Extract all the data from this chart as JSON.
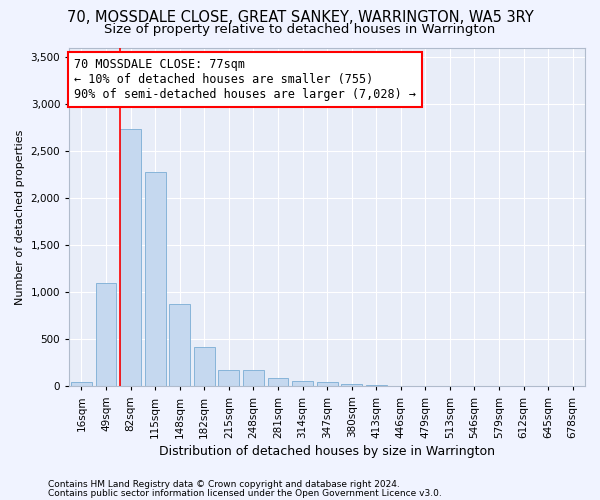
{
  "title": "70, MOSSDALE CLOSE, GREAT SANKEY, WARRINGTON, WA5 3RY",
  "subtitle": "Size of property relative to detached houses in Warrington",
  "xlabel": "Distribution of detached houses by size in Warrington",
  "ylabel": "Number of detached properties",
  "categories": [
    "16sqm",
    "49sqm",
    "82sqm",
    "115sqm",
    "148sqm",
    "182sqm",
    "215sqm",
    "248sqm",
    "281sqm",
    "314sqm",
    "347sqm",
    "380sqm",
    "413sqm",
    "446sqm",
    "479sqm",
    "513sqm",
    "546sqm",
    "579sqm",
    "612sqm",
    "645sqm",
    "678sqm"
  ],
  "values": [
    50,
    1100,
    2730,
    2280,
    880,
    420,
    170,
    170,
    90,
    55,
    50,
    30,
    20,
    5,
    2,
    1,
    0,
    0,
    0,
    0,
    0
  ],
  "bar_color": "#c5d8ef",
  "bar_edge_color": "#7aadd4",
  "annotation_line1": "70 MOSSDALE CLOSE: 77sqm",
  "annotation_line2": "← 10% of detached houses are smaller (755)",
  "annotation_line3": "90% of semi-detached houses are larger (7,028) →",
  "annotation_box_color": "white",
  "annotation_box_edge_color": "red",
  "red_line_x": 2,
  "ylim": [
    0,
    3600
  ],
  "yticks": [
    0,
    500,
    1000,
    1500,
    2000,
    2500,
    3000,
    3500
  ],
  "background_color": "#f0f3ff",
  "plot_background": "#e8edf8",
  "grid_color": "white",
  "footer_line1": "Contains HM Land Registry data © Crown copyright and database right 2024.",
  "footer_line2": "Contains public sector information licensed under the Open Government Licence v3.0.",
  "title_fontsize": 10.5,
  "subtitle_fontsize": 9.5,
  "xlabel_fontsize": 9,
  "ylabel_fontsize": 8,
  "annot_fontsize": 8.5,
  "tick_fontsize": 7.5,
  "footer_fontsize": 6.5
}
